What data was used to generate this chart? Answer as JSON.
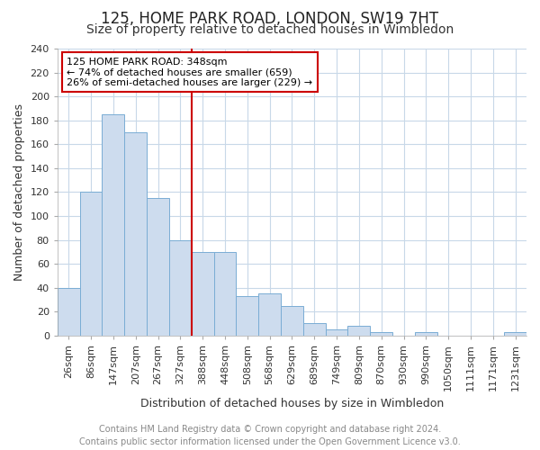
{
  "title": "125, HOME PARK ROAD, LONDON, SW19 7HT",
  "subtitle": "Size of property relative to detached houses in Wimbledon",
  "xlabel": "Distribution of detached houses by size in Wimbledon",
  "ylabel": "Number of detached properties",
  "categories": [
    "26sqm",
    "86sqm",
    "147sqm",
    "207sqm",
    "267sqm",
    "327sqm",
    "388sqm",
    "448sqm",
    "508sqm",
    "568sqm",
    "629sqm",
    "689sqm",
    "749sqm",
    "809sqm",
    "870sqm",
    "930sqm",
    "990sqm",
    "1050sqm",
    "1111sqm",
    "1171sqm",
    "1231sqm"
  ],
  "values": [
    40,
    120,
    185,
    170,
    115,
    80,
    70,
    70,
    33,
    35,
    25,
    10,
    5,
    8,
    3,
    0,
    3,
    0,
    0,
    0,
    3
  ],
  "bar_color": "#cddcee",
  "bar_edge_color": "#7aadd4",
  "red_line_x": 5.5,
  "annotation_text_line1": "125 HOME PARK ROAD: 348sqm",
  "annotation_text_line2": "← 74% of detached houses are smaller (659)",
  "annotation_text_line3": "26% of semi-detached houses are larger (229) →",
  "annotation_box_color": "#cc0000",
  "ylim": [
    0,
    240
  ],
  "yticks": [
    0,
    20,
    40,
    60,
    80,
    100,
    120,
    140,
    160,
    180,
    200,
    220,
    240
  ],
  "footer_line1": "Contains HM Land Registry data © Crown copyright and database right 2024.",
  "footer_line2": "Contains public sector information licensed under the Open Government Licence v3.0.",
  "background_color": "#ffffff",
  "grid_color": "#c8d8e8",
  "title_fontsize": 12,
  "subtitle_fontsize": 10,
  "label_fontsize": 9,
  "tick_fontsize": 8,
  "footer_fontsize": 7
}
